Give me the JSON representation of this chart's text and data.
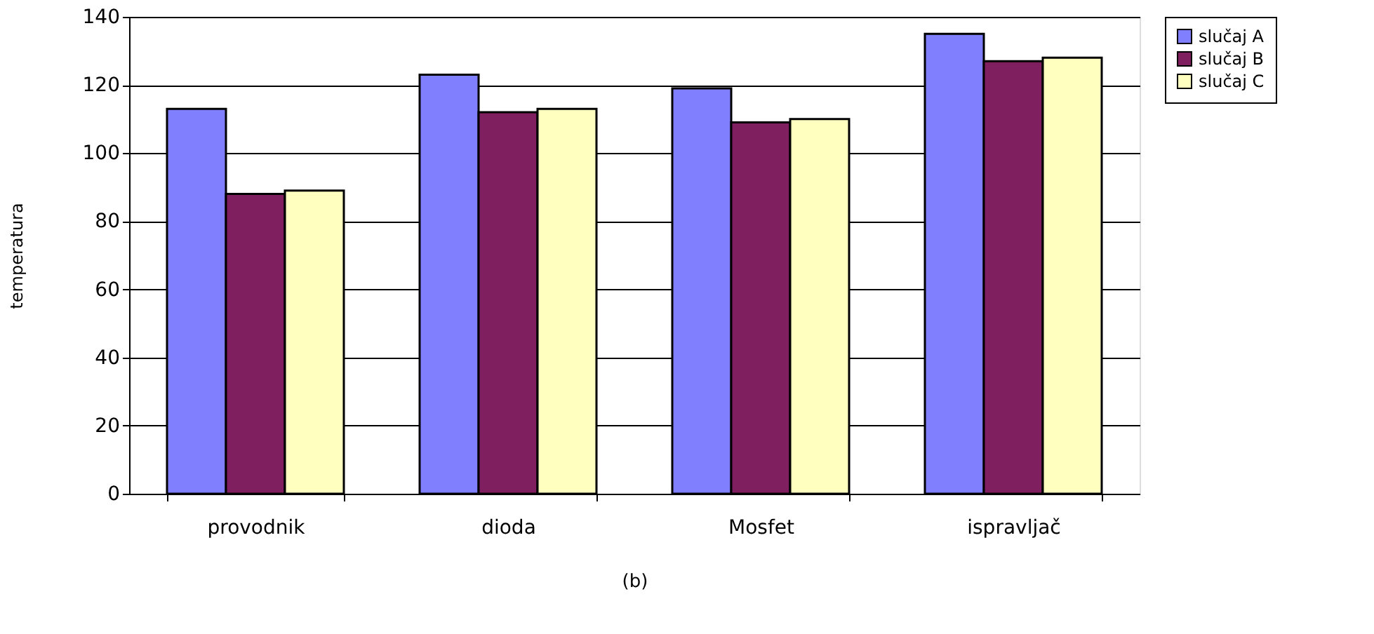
{
  "chart_data": {
    "type": "bar",
    "ylabel": "temperatura",
    "categories": [
      "provodnik",
      "dioda",
      "Mosfet",
      "ispravljač"
    ],
    "series": [
      {
        "name": "slučaj A",
        "color": "#8080ff",
        "values": [
          113,
          123,
          119,
          135
        ]
      },
      {
        "name": "slučaj B",
        "color": "#7f1f5f",
        "values": [
          88,
          112,
          109,
          127
        ]
      },
      {
        "name": "slučaj C",
        "color": "#ffffc0",
        "values": [
          89,
          113,
          110,
          128
        ]
      }
    ],
    "ylim": [
      0,
      140
    ],
    "yticks": [
      0,
      20,
      40,
      60,
      80,
      100,
      120,
      140
    ],
    "grid": "y",
    "legend": "right",
    "annotations": [
      "(b)"
    ]
  }
}
